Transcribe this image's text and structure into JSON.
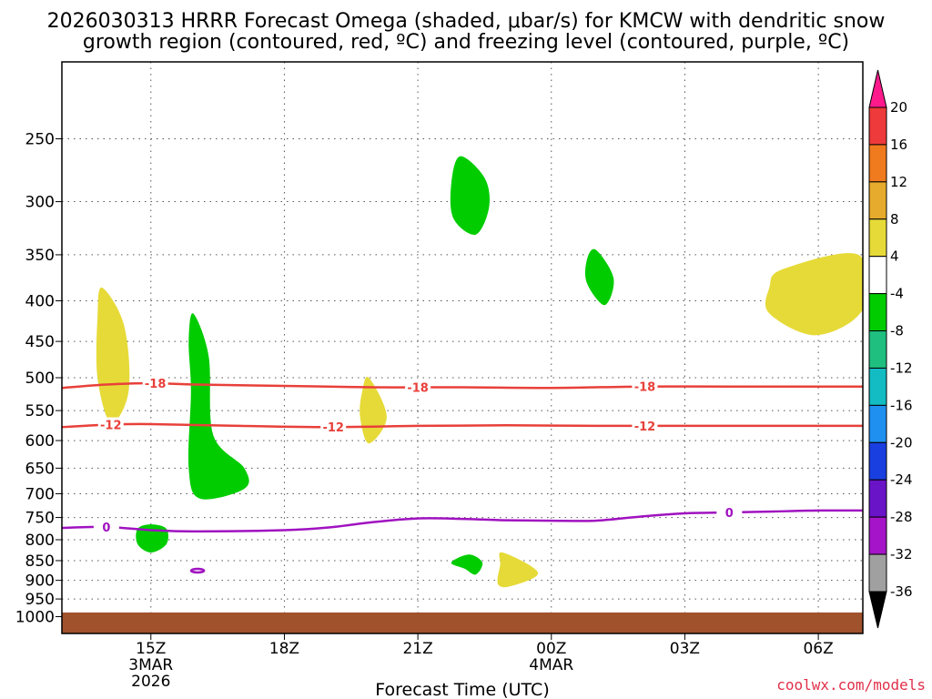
{
  "chart_data": {
    "type": "time-height",
    "title_line1": "2026030313 HRRR Forecast Omega (shaded, μbar/s) for KMCW with dendritic snow",
    "title_line2": "growth region (contoured, red, ºC) and freezing level (contoured, purple, ºC)",
    "xlabel": "Forecast Time (UTC)",
    "credit": "coolwx.com/models",
    "y_axis": {
      "unit": "hPa",
      "ticks": [
        "250",
        "300",
        "350",
        "400",
        "450",
        "500",
        "550",
        "600",
        "650",
        "700",
        "750",
        "800",
        "850",
        "900",
        "950",
        "1000"
      ],
      "ylim": [
        200,
        1050
      ]
    },
    "x_axis": {
      "unit": "hours since 13Z 3 Mar 2026",
      "xlim": [
        0,
        18
      ],
      "ticks": [
        {
          "t": 2,
          "line1": "15Z",
          "line2": "3MAR",
          "line3": "2026"
        },
        {
          "t": 5,
          "line1": "18Z"
        },
        {
          "t": 8,
          "line1": "21Z"
        },
        {
          "t": 11,
          "line1": "00Z",
          "line2": "4MAR"
        },
        {
          "t": 14,
          "line1": "03Z"
        },
        {
          "t": 17,
          "line1": "06Z"
        }
      ]
    },
    "colorbar": {
      "labels": [
        "20",
        "16",
        "12",
        "8",
        "4",
        "-4",
        "-8",
        "-12",
        "-16",
        "-20",
        "-24",
        "-28",
        "-32",
        "-36"
      ],
      "segments": [
        {
          "color": "#ff1a8c"
        },
        {
          "color": "#ee3a3a"
        },
        {
          "color": "#f07a1e"
        },
        {
          "color": "#e6ab2c"
        },
        {
          "color": "#e6da38"
        },
        {
          "color": "#ffffff"
        },
        {
          "color": "#00cc00"
        },
        {
          "color": "#1fbf7f"
        },
        {
          "color": "#12bcc2"
        },
        {
          "color": "#1f8ff0"
        },
        {
          "color": "#1a3fe0"
        },
        {
          "color": "#6a14c8"
        },
        {
          "color": "#a514c8"
        },
        {
          "color": "#a0a0a0"
        },
        {
          "color": "#000000"
        }
      ]
    },
    "shaded_regions": [
      {
        "omega": "4 to 8",
        "color": "#e6da38",
        "points": [
          [
            0.9,
            385
          ],
          [
            1.4,
            430
          ],
          [
            1.5,
            520
          ],
          [
            1.1,
            570
          ],
          [
            0.8,
            500
          ],
          [
            0.8,
            420
          ]
        ]
      },
      {
        "omega": "-4 to -8",
        "color": "#00cc00",
        "points": [
          [
            2.95,
            415
          ],
          [
            3.3,
            470
          ],
          [
            3.4,
            590
          ],
          [
            4.1,
            650
          ],
          [
            4.1,
            690
          ],
          [
            3.1,
            710
          ],
          [
            2.85,
            650
          ],
          [
            2.9,
            520
          ],
          [
            2.85,
            450
          ]
        ]
      },
      {
        "omega": "-4 to -8",
        "color": "#00cc00",
        "points": [
          [
            2.0,
            765
          ],
          [
            2.35,
            775
          ],
          [
            2.35,
            810
          ],
          [
            2.0,
            830
          ],
          [
            1.7,
            810
          ],
          [
            1.7,
            775
          ]
        ]
      },
      {
        "omega": "4 to 8",
        "color": "#e6da38",
        "points": [
          [
            6.9,
            500
          ],
          [
            7.3,
            560
          ],
          [
            6.9,
            605
          ],
          [
            6.7,
            560
          ],
          [
            6.75,
            520
          ]
        ]
      },
      {
        "omega": "-4 to -8",
        "color": "#00cc00",
        "points": [
          [
            8.95,
            263
          ],
          [
            9.5,
            280
          ],
          [
            9.6,
            305
          ],
          [
            9.3,
            330
          ],
          [
            8.8,
            315
          ],
          [
            8.75,
            285
          ]
        ]
      },
      {
        "omega": "-4 to -8",
        "color": "#00cc00",
        "points": [
          [
            9.15,
            835
          ],
          [
            9.45,
            855
          ],
          [
            9.3,
            885
          ],
          [
            9.05,
            870
          ],
          [
            8.75,
            855
          ]
        ]
      },
      {
        "omega": "4 to 8",
        "color": "#e6da38",
        "points": [
          [
            9.9,
            830
          ],
          [
            10.7,
            880
          ],
          [
            10.1,
            915
          ],
          [
            9.8,
            910
          ],
          [
            9.85,
            860
          ]
        ]
      },
      {
        "omega": "-4 to -8",
        "color": "#00cc00",
        "points": [
          [
            12.0,
            345
          ],
          [
            12.4,
            375
          ],
          [
            12.2,
            405
          ],
          [
            11.8,
            380
          ],
          [
            11.8,
            355
          ]
        ]
      },
      {
        "omega": "4 to 8",
        "color": "#e6da38",
        "points": [
          [
            16.2,
            365
          ],
          [
            17.9,
            350
          ],
          [
            18,
            410
          ],
          [
            16.95,
            442
          ],
          [
            15.9,
            415
          ],
          [
            15.9,
            385
          ]
        ]
      }
    ],
    "contours": [
      {
        "name": "dgz-top",
        "level": -18,
        "color": "#e8403a",
        "points": [
          [
            0,
            515
          ],
          [
            1,
            510
          ],
          [
            2,
            508
          ],
          [
            3,
            510
          ],
          [
            5,
            512
          ],
          [
            7,
            514
          ],
          [
            9,
            514
          ],
          [
            11,
            515
          ],
          [
            13,
            513
          ],
          [
            15,
            513
          ],
          [
            18,
            513
          ]
        ],
        "label_at": [
          2.1,
          8.0,
          13.1
        ]
      },
      {
        "name": "dgz-bottom",
        "level": -12,
        "color": "#e8403a",
        "points": [
          [
            0,
            577
          ],
          [
            1,
            573
          ],
          [
            2,
            572
          ],
          [
            4,
            575
          ],
          [
            6,
            577
          ],
          [
            8,
            575
          ],
          [
            10,
            574
          ],
          [
            12,
            575
          ],
          [
            14,
            575
          ],
          [
            16,
            575
          ],
          [
            18,
            575
          ]
        ],
        "label_at": [
          1.1,
          6.1,
          13.1
        ]
      },
      {
        "name": "freezing-level",
        "level": 0,
        "color": "#a012c0",
        "points": [
          [
            0,
            773
          ],
          [
            1,
            771
          ],
          [
            2,
            778
          ],
          [
            3,
            781
          ],
          [
            5,
            778
          ],
          [
            6,
            772
          ],
          [
            7,
            760
          ],
          [
            8,
            752
          ],
          [
            9,
            753
          ],
          [
            10,
            756
          ],
          [
            11,
            757
          ],
          [
            12,
            757
          ],
          [
            13,
            748
          ],
          [
            14,
            741
          ],
          [
            15,
            739
          ],
          [
            16,
            737
          ],
          [
            17,
            735
          ],
          [
            18,
            735
          ]
        ],
        "label_at": [
          1.0,
          15.0
        ]
      }
    ],
    "terrain": {
      "color": "#a0522d",
      "below_hpa": 988
    }
  }
}
